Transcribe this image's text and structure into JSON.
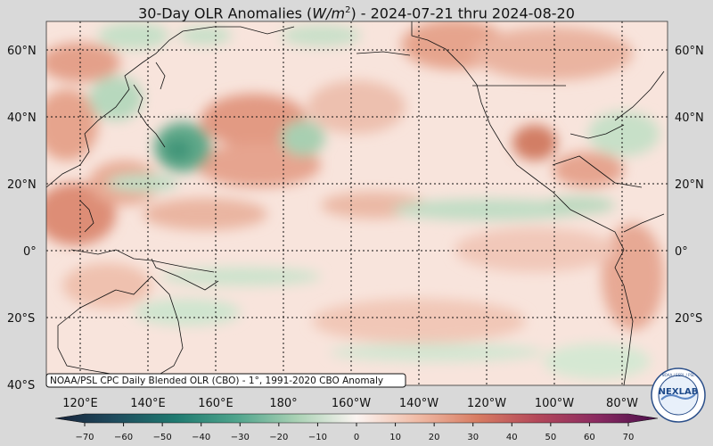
{
  "title": {
    "prefix": "30-Day OLR Anomalies (",
    "unit_base": "W/m",
    "unit_exp": "2",
    "suffix": ") - 2024-07-21 thru 2024-08-20"
  },
  "lat_labels": [
    "60°N",
    "40°N",
    "20°N",
    "0°",
    "20°S",
    "40°S"
  ],
  "lon_labels": [
    "120°E",
    "140°E",
    "160°E",
    "180°",
    "160°W",
    "140°W",
    "120°W",
    "100°W",
    "80°W"
  ],
  "source_note": "NOAA/PSL CPC Daily Blended OLR (CBO) - 1°, 1991-2020 CBO Anomaly",
  "colorbar": {
    "ticks": [
      -70,
      -60,
      -50,
      -40,
      -30,
      -20,
      -10,
      0,
      10,
      20,
      30,
      40,
      50,
      60,
      70
    ],
    "min": -75,
    "max": 75,
    "colors": {
      "-75": "#17233b",
      "-60": "#1f4c5e",
      "-45": "#1f7a70",
      "-30": "#4fa48c",
      "-15": "#a9d1b4",
      "0": "#fbf4f1",
      "15": "#f0bca7",
      "30": "#d87d63",
      "45": "#b4485a",
      "60": "#8a2a61",
      "75": "#4a0f4b"
    }
  },
  "logo": {
    "text": "NEXLAB",
    "ring_text": "NOAA / ESRL / PSL"
  },
  "colors": {
    "background": "#d9d9d9",
    "coast": "#111111",
    "grid": "#111111"
  }
}
